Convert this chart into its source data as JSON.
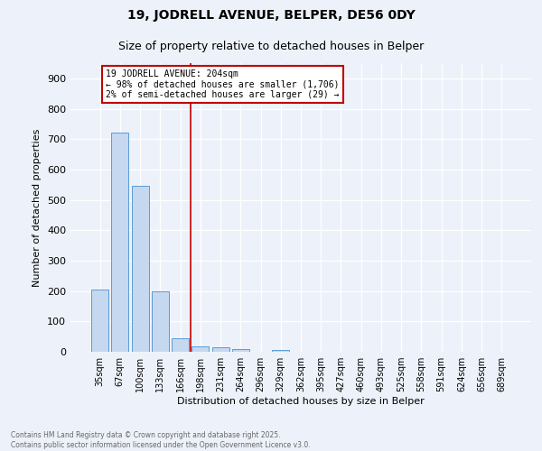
{
  "title1": "19, JODRELL AVENUE, BELPER, DE56 0DY",
  "title2": "Size of property relative to detached houses in Belper",
  "xlabel": "Distribution of detached houses by size in Belper",
  "ylabel": "Number of detached properties",
  "bar_labels": [
    "35sqm",
    "67sqm",
    "100sqm",
    "133sqm",
    "166sqm",
    "198sqm",
    "231sqm",
    "264sqm",
    "296sqm",
    "329sqm",
    "362sqm",
    "395sqm",
    "427sqm",
    "460sqm",
    "493sqm",
    "525sqm",
    "558sqm",
    "591sqm",
    "624sqm",
    "656sqm",
    "689sqm"
  ],
  "bar_values": [
    205,
    720,
    545,
    198,
    46,
    18,
    15,
    10,
    0,
    5,
    0,
    0,
    0,
    0,
    0,
    0,
    0,
    0,
    0,
    0,
    0
  ],
  "bar_color": "#c5d8f0",
  "bar_edge_color": "#5b9bd5",
  "vline_index": 5,
  "vline_color": "#c00000",
  "ylim": [
    0,
    950
  ],
  "yticks": [
    0,
    100,
    200,
    300,
    400,
    500,
    600,
    700,
    800,
    900
  ],
  "annotation_text": "19 JODRELL AVENUE: 204sqm\n← 98% of detached houses are smaller (1,706)\n2% of semi-detached houses are larger (29) →",
  "annotation_box_color": "#ffffff",
  "annotation_box_edge": "#c00000",
  "footer": "Contains HM Land Registry data © Crown copyright and database right 2025.\nContains public sector information licensed under the Open Government Licence v3.0.",
  "bg_color": "#edf2fa",
  "grid_color": "#ffffff",
  "title1_fontsize": 10,
  "title2_fontsize": 9,
  "ylabel_fontsize": 8,
  "xlabel_fontsize": 8,
  "tick_fontsize": 7,
  "footer_fontsize": 5.5
}
